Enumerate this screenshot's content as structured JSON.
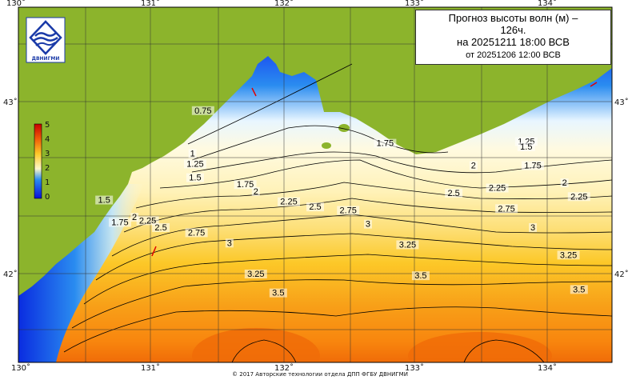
{
  "title": {
    "line1": "Прогноз высоты волн (м) –",
    "line2": "126ч.",
    "line3": "на 20251211 18:00 ВСВ",
    "line4": "от 20251206 12:00 ВСВ"
  },
  "logo_text": "ДВНИГМИ",
  "footer": "© 2017 Авторские технологии отдела ДПП ФГБУ ДВНИГМИ",
  "longitude_labels": [
    "130˚",
    "131˚",
    "132˚",
    "133˚",
    "134˚"
  ],
  "latitude_labels": [
    "43˚",
    "42˚"
  ],
  "colorbar": {
    "ticks": [
      "5",
      "4",
      "3",
      "2",
      "1",
      "0"
    ],
    "min": 0,
    "max": 5
  },
  "colors": {
    "land": "#8cb42c",
    "deep_blue": "#0a10d8",
    "mid_blue": "#2a8cf0",
    "light_yellow": "#fff8c8",
    "yellow": "#fcd028",
    "orange": "#f88410",
    "red_orange": "#f05c08",
    "contour": "#000000"
  },
  "contour_labels": [
    "0.75",
    "1",
    "1.25",
    "1.5",
    "1.75",
    "2",
    "2.25",
    "2.5",
    "2.75",
    "3",
    "3.25",
    "3.5"
  ],
  "contour_annotations": [
    {
      "text": "0.75",
      "lon": 131.4,
      "lat": 42.95
    },
    {
      "text": "1",
      "lon": 131.32,
      "lat": 42.7
    },
    {
      "text": "1.25",
      "lon": 131.34,
      "lat": 42.64
    },
    {
      "text": "1.5",
      "lon": 131.34,
      "lat": 42.56
    },
    {
      "text": "1.75",
      "lon": 131.72,
      "lat": 42.52
    },
    {
      "text": "2",
      "lon": 131.8,
      "lat": 42.48
    },
    {
      "text": "2.25",
      "lon": 132.05,
      "lat": 42.42
    },
    {
      "text": "2.5",
      "lon": 132.25,
      "lat": 42.39
    },
    {
      "text": "2.75",
      "lon": 132.5,
      "lat": 42.37
    },
    {
      "text": "3",
      "lon": 132.65,
      "lat": 42.29
    },
    {
      "text": "3.25",
      "lon": 132.95,
      "lat": 42.17
    },
    {
      "text": "3.5",
      "lon": 133.05,
      "lat": 41.99
    },
    {
      "text": "1.75",
      "lon": 132.78,
      "lat": 42.76
    },
    {
      "text": "1.25",
      "lon": 133.85,
      "lat": 42.77
    },
    {
      "text": "1.5",
      "lon": 133.85,
      "lat": 42.74
    },
    {
      "text": "2",
      "lon": 133.45,
      "lat": 42.63
    },
    {
      "text": "1.75",
      "lon": 133.9,
      "lat": 42.63
    },
    {
      "text": "2.25",
      "lon": 133.63,
      "lat": 42.5
    },
    {
      "text": "2.5",
      "lon": 133.3,
      "lat": 42.47
    },
    {
      "text": "2",
      "lon": 134.14,
      "lat": 42.53
    },
    {
      "text": "2.25",
      "lon": 134.25,
      "lat": 42.45
    },
    {
      "text": "2.75",
      "lon": 133.7,
      "lat": 42.38
    },
    {
      "text": "3",
      "lon": 133.9,
      "lat": 42.27
    },
    {
      "text": "3.25",
      "lon": 134.17,
      "lat": 42.11
    },
    {
      "text": "3.5",
      "lon": 134.25,
      "lat": 41.91
    },
    {
      "text": "1.5",
      "lon": 130.65,
      "lat": 42.43
    },
    {
      "text": "1.75",
      "lon": 130.77,
      "lat": 42.3
    },
    {
      "text": "2",
      "lon": 130.88,
      "lat": 42.33
    },
    {
      "text": "2.25",
      "lon": 130.98,
      "lat": 42.31
    },
    {
      "text": "2.5",
      "lon": 131.08,
      "lat": 42.27
    },
    {
      "text": "2.75",
      "lon": 131.35,
      "lat": 42.24
    },
    {
      "text": "3",
      "lon": 131.6,
      "lat": 42.18
    },
    {
      "text": "3.25",
      "lon": 131.8,
      "lat": 42.0
    },
    {
      "text": "3.5",
      "lon": 131.97,
      "lat": 41.89
    }
  ]
}
